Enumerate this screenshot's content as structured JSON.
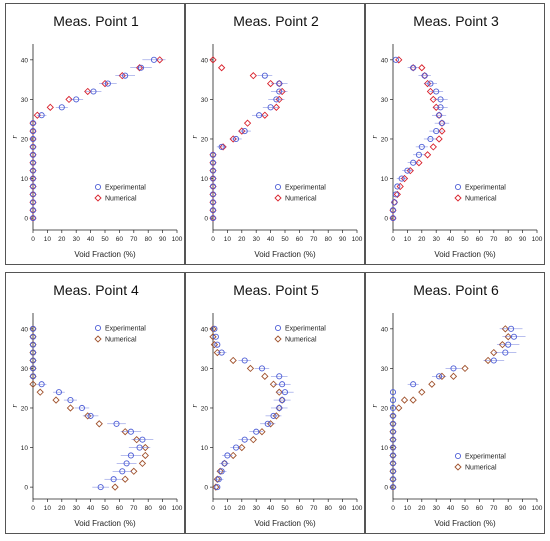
{
  "figure": {
    "xlabel": "Void Fraction (%)",
    "ylabel": "r",
    "legend": [
      "Experimental",
      "Numerical"
    ]
  },
  "colors": {
    "experimental": "#4f5fd6",
    "numerical_top": "#d9232e",
    "numerical_bottom": "#a0522d",
    "axis": "#222222"
  },
  "chart_data": [
    {
      "type": "scatter",
      "title": "Meas. Point 1",
      "xlabel": "Void Fraction (%)",
      "ylabel": "r",
      "xlim": [
        0,
        100
      ],
      "ylim": [
        -3,
        44
      ],
      "xticks": [
        0,
        10,
        20,
        30,
        40,
        50,
        60,
        70,
        80,
        90,
        100
      ],
      "yticks": [
        0,
        10,
        20,
        30,
        40
      ],
      "legend_position": "bottom-right",
      "series": [
        {
          "name": "Experimental",
          "marker": "circle",
          "x": [
            0,
            0,
            0,
            0,
            0,
            0,
            0,
            0,
            0,
            0,
            0,
            0,
            0,
            6,
            20,
            30,
            42,
            52,
            64,
            75,
            84
          ],
          "y": [
            0,
            2,
            4,
            6,
            8,
            10,
            12,
            14,
            16,
            18,
            20,
            22,
            24,
            26,
            28,
            30,
            32,
            34,
            36,
            38,
            40
          ]
        },
        {
          "name": "Numerical",
          "marker": "diamond",
          "x": [
            0,
            0,
            0,
            0,
            0,
            0,
            0,
            0,
            0,
            0,
            0,
            0,
            0,
            3,
            12,
            25,
            38,
            50,
            62,
            74,
            88
          ],
          "y": [
            0,
            2,
            4,
            6,
            8,
            10,
            12,
            14,
            16,
            18,
            20,
            22,
            24,
            26,
            28,
            30,
            32,
            34,
            36,
            38,
            40
          ]
        }
      ]
    },
    {
      "type": "scatter",
      "title": "Meas. Point 2",
      "xlabel": "Void Fraction (%)",
      "ylabel": "r",
      "xlim": [
        0,
        100
      ],
      "ylim": [
        -3,
        44
      ],
      "xticks": [
        0,
        10,
        20,
        30,
        40,
        50,
        60,
        70,
        80,
        90,
        100
      ],
      "yticks": [
        0,
        10,
        20,
        30,
        40
      ],
      "legend_position": "bottom-right",
      "series": [
        {
          "name": "Experimental",
          "marker": "circle",
          "x": [
            0,
            0,
            0,
            0,
            0,
            0,
            0,
            0,
            0,
            6,
            16,
            22,
            32,
            40,
            44,
            46,
            46,
            36
          ],
          "y": [
            0,
            2,
            4,
            6,
            8,
            10,
            12,
            14,
            16,
            18,
            20,
            22,
            26,
            28,
            30,
            32,
            34,
            36
          ]
        },
        {
          "name": "Numerical",
          "marker": "diamond",
          "x": [
            0,
            0,
            0,
            0,
            0,
            0,
            0,
            0,
            0,
            7,
            14,
            20,
            24,
            36,
            44,
            46,
            48,
            46,
            40,
            28,
            6,
            0
          ],
          "y": [
            0,
            2,
            4,
            6,
            8,
            10,
            12,
            14,
            16,
            18,
            20,
            22,
            24,
            26,
            28,
            30,
            32,
            34,
            34,
            36,
            38,
            40
          ]
        }
      ]
    },
    {
      "type": "scatter",
      "title": "Meas. Point 3",
      "xlabel": "Void Fraction (%)",
      "ylabel": "r",
      "xlim": [
        0,
        100
      ],
      "ylim": [
        -3,
        44
      ],
      "xticks": [
        0,
        10,
        20,
        30,
        40,
        50,
        60,
        70,
        80,
        90,
        100
      ],
      "yticks": [
        0,
        10,
        20,
        30,
        40
      ],
      "legend_position": "bottom-right",
      "series": [
        {
          "name": "Experimental",
          "marker": "circle",
          "x": [
            0,
            0,
            1,
            2,
            3,
            6,
            10,
            14,
            18,
            20,
            26,
            30,
            34,
            32,
            33,
            33,
            30,
            26,
            22,
            14,
            2
          ],
          "y": [
            0,
            2,
            4,
            6,
            8,
            10,
            12,
            14,
            16,
            18,
            20,
            22,
            24,
            26,
            28,
            30,
            32,
            34,
            36,
            38,
            40
          ]
        },
        {
          "name": "Numerical",
          "marker": "diamond",
          "x": [
            0,
            0,
            1,
            3,
            5,
            8,
            12,
            18,
            24,
            28,
            32,
            34,
            34,
            32,
            30,
            28,
            26,
            24,
            22,
            20,
            14,
            4
          ],
          "y": [
            0,
            2,
            4,
            6,
            8,
            10,
            12,
            14,
            16,
            18,
            20,
            22,
            24,
            26,
            28,
            30,
            32,
            34,
            36,
            38,
            38,
            40
          ]
        }
      ]
    },
    {
      "type": "scatter",
      "title": "Meas. Point 4",
      "xlabel": "Void Fraction (%)",
      "ylabel": "r",
      "xlim": [
        0,
        100
      ],
      "ylim": [
        -3,
        44
      ],
      "xticks": [
        0,
        10,
        20,
        30,
        40,
        50,
        60,
        70,
        80,
        90,
        100
      ],
      "yticks": [
        0,
        10,
        20,
        30,
        40
      ],
      "legend_position": "top-right",
      "series": [
        {
          "name": "Experimental",
          "marker": "circle",
          "x": [
            47,
            56,
            62,
            65,
            68,
            74,
            76,
            68,
            58,
            40,
            34,
            26,
            18,
            6,
            0,
            0,
            0,
            0,
            0,
            0,
            0
          ],
          "y": [
            0,
            2,
            4,
            6,
            8,
            10,
            12,
            14,
            16,
            18,
            20,
            22,
            24,
            26,
            28,
            30,
            32,
            34,
            36,
            38,
            40
          ]
        },
        {
          "name": "Numerical",
          "marker": "diamond",
          "x": [
            57,
            64,
            70,
            76,
            78,
            78,
            72,
            64,
            46,
            38,
            26,
            16,
            5,
            0,
            0,
            0,
            0,
            0,
            0,
            0,
            0
          ],
          "y": [
            0,
            2,
            4,
            6,
            8,
            10,
            12,
            14,
            16,
            18,
            20,
            22,
            24,
            26,
            28,
            30,
            32,
            34,
            36,
            38,
            40
          ]
        }
      ]
    },
    {
      "type": "scatter",
      "title": "Meas. Point 5",
      "xlabel": "Void Fraction (%)",
      "ylabel": "r",
      "xlim": [
        0,
        100
      ],
      "ylim": [
        -3,
        44
      ],
      "xticks": [
        0,
        10,
        20,
        30,
        40,
        50,
        60,
        70,
        80,
        90,
        100
      ],
      "yticks": [
        0,
        10,
        20,
        30,
        40
      ],
      "legend_position": "top-right",
      "series": [
        {
          "name": "Experimental",
          "marker": "circle",
          "x": [
            3,
            4,
            6,
            8,
            10,
            16,
            22,
            30,
            38,
            42,
            46,
            48,
            50,
            48,
            46,
            34,
            22,
            6,
            3,
            2,
            1
          ],
          "y": [
            0,
            2,
            4,
            6,
            8,
            10,
            12,
            14,
            16,
            18,
            20,
            22,
            24,
            26,
            28,
            30,
            32,
            34,
            36,
            38,
            40
          ]
        },
        {
          "name": "Numerical",
          "marker": "diamond",
          "x": [
            2,
            3,
            5,
            8,
            14,
            20,
            28,
            34,
            40,
            44,
            46,
            48,
            46,
            42,
            36,
            26,
            14,
            3,
            1,
            0,
            0
          ],
          "y": [
            0,
            2,
            4,
            6,
            8,
            10,
            12,
            14,
            16,
            18,
            20,
            22,
            24,
            26,
            28,
            30,
            32,
            34,
            36,
            38,
            40
          ]
        }
      ]
    },
    {
      "type": "scatter",
      "title": "Meas. Point 6",
      "xlabel": "Void Fraction (%)",
      "ylabel": "r",
      "xlim": [
        0,
        100
      ],
      "ylim": [
        -3,
        44
      ],
      "xticks": [
        0,
        10,
        20,
        30,
        40,
        50,
        60,
        70,
        80,
        90,
        100
      ],
      "yticks": [
        0,
        10,
        20,
        30,
        40
      ],
      "legend_position": "bottom-right",
      "series": [
        {
          "name": "Experimental",
          "marker": "circle",
          "x": [
            0,
            0,
            0,
            0,
            0,
            0,
            0,
            0,
            0,
            0,
            0,
            0,
            0,
            14,
            32,
            42,
            70,
            78,
            80,
            84,
            82
          ],
          "y": [
            0,
            2,
            4,
            6,
            8,
            10,
            12,
            14,
            16,
            18,
            20,
            22,
            24,
            26,
            28,
            30,
            32,
            34,
            36,
            38,
            40
          ]
        },
        {
          "name": "Numerical",
          "marker": "diamond",
          "x": [
            0,
            0,
            0,
            0,
            0,
            0,
            0,
            0,
            0,
            0,
            4,
            8,
            14,
            20,
            27,
            34,
            42,
            50,
            66,
            70,
            76,
            80,
            78
          ],
          "y": [
            0,
            2,
            4,
            6,
            8,
            10,
            12,
            14,
            16,
            18,
            20,
            22,
            22,
            24,
            26,
            28,
            28,
            30,
            32,
            34,
            36,
            38,
            40
          ]
        }
      ]
    }
  ]
}
